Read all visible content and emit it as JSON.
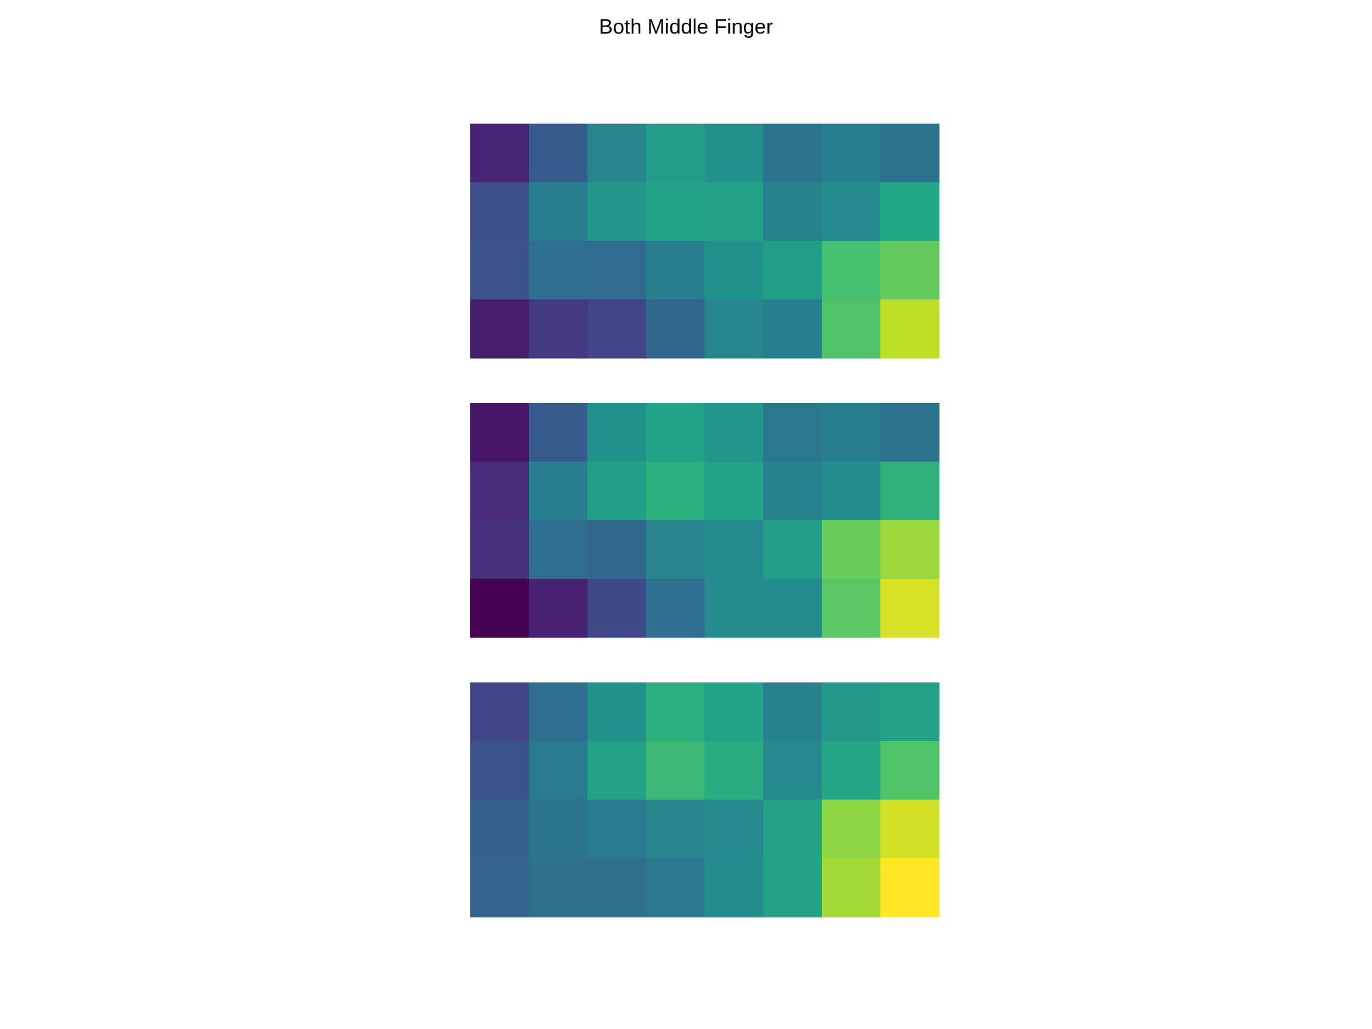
{
  "chart_data": {
    "type": "heatmap",
    "title": "Both Middle Finger",
    "colormap": "viridis",
    "value_range": [
      0,
      1
    ],
    "grid": false,
    "axes_visible": false,
    "panels": [
      {
        "rows": 4,
        "cols": 8,
        "values": [
          [
            0.1,
            0.28,
            0.45,
            0.55,
            0.5,
            0.38,
            0.42,
            0.38
          ],
          [
            0.24,
            0.42,
            0.52,
            0.58,
            0.57,
            0.44,
            0.47,
            0.6
          ],
          [
            0.25,
            0.36,
            0.35,
            0.42,
            0.5,
            0.55,
            0.7,
            0.76
          ],
          [
            0.08,
            0.17,
            0.2,
            0.33,
            0.46,
            0.43,
            0.72,
            0.9
          ]
        ]
      },
      {
        "rows": 4,
        "cols": 8,
        "values": [
          [
            0.06,
            0.28,
            0.5,
            0.58,
            0.52,
            0.4,
            0.42,
            0.38
          ],
          [
            0.12,
            0.42,
            0.56,
            0.63,
            0.58,
            0.44,
            0.48,
            0.64
          ],
          [
            0.14,
            0.36,
            0.34,
            0.45,
            0.48,
            0.55,
            0.77,
            0.85
          ],
          [
            0.0,
            0.09,
            0.22,
            0.36,
            0.48,
            0.48,
            0.74,
            0.94
          ]
        ]
      },
      {
        "rows": 4,
        "cols": 8,
        "values": [
          [
            0.2,
            0.36,
            0.5,
            0.63,
            0.58,
            0.44,
            0.53,
            0.57
          ],
          [
            0.26,
            0.41,
            0.57,
            0.67,
            0.62,
            0.47,
            0.59,
            0.72
          ],
          [
            0.3,
            0.39,
            0.41,
            0.45,
            0.47,
            0.57,
            0.83,
            0.93
          ],
          [
            0.32,
            0.37,
            0.37,
            0.4,
            0.48,
            0.57,
            0.86,
            1.0
          ]
        ]
      }
    ]
  }
}
